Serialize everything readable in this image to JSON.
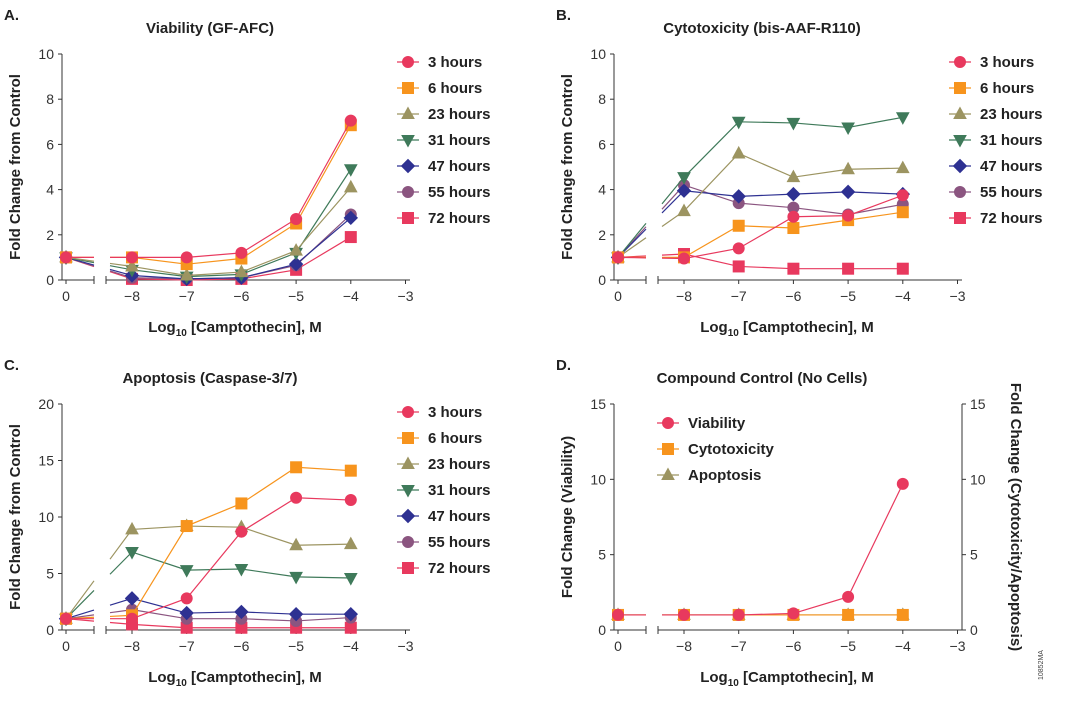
{
  "series_styles": [
    {
      "name": "3 hours",
      "color": "#e8395e",
      "marker": "circle"
    },
    {
      "name": "6 hours",
      "color": "#f7941d",
      "marker": "square"
    },
    {
      "name": "23 hours",
      "color": "#9c9461",
      "marker": "triangle"
    },
    {
      "name": "31 hours",
      "color": "#3f7a5a",
      "marker": "triangle-down"
    },
    {
      "name": "47 hours",
      "color": "#2e3192",
      "marker": "diamond"
    },
    {
      "name": "55 hours",
      "color": "#8b5580",
      "marker": "circle"
    },
    {
      "name": "72 hours",
      "color": "#e8395e",
      "marker": "square"
    }
  ],
  "figure_code": "10852MA",
  "chart_data": [
    {
      "panel": "A.",
      "type": "line",
      "title": "Viability (GF-AFC)",
      "xlabel": "Log10 [Camptothecin], M",
      "xlabel_main": "Log",
      "xlabel_sub": "10",
      "xlabel_rest": " [Camptothecin], M",
      "ylabel": "Fold Change from Control",
      "ylim": [
        0,
        10
      ],
      "yticks": [
        0,
        2,
        4,
        6,
        8,
        10
      ],
      "xticks": [
        "0",
        "−8",
        "−7",
        "−6",
        "−5",
        "−4",
        "−3"
      ],
      "x": [
        0,
        -8,
        -7,
        -6,
        -5,
        -4
      ],
      "axis_break": true,
      "series": [
        {
          "name": "3 hours",
          "values": [
            1,
            1.0,
            1.0,
            1.2,
            2.7,
            7.05
          ]
        },
        {
          "name": "6 hours",
          "values": [
            1,
            1.0,
            0.7,
            0.95,
            2.5,
            6.85
          ]
        },
        {
          "name": "23 hours",
          "values": [
            1,
            0.6,
            0.2,
            0.35,
            1.3,
            4.1
          ]
        },
        {
          "name": "31 hours",
          "values": [
            1,
            0.45,
            0.15,
            0.25,
            1.2,
            4.9
          ]
        },
        {
          "name": "47 hours",
          "values": [
            1,
            0.2,
            0.05,
            0.1,
            0.7,
            2.75
          ]
        },
        {
          "name": "55 hours",
          "values": [
            1,
            0.1,
            0.05,
            0.1,
            0.65,
            2.9
          ]
        },
        {
          "name": "72 hours",
          "values": [
            1,
            0.05,
            0.0,
            0.05,
            0.45,
            1.9
          ]
        }
      ]
    },
    {
      "panel": "B.",
      "type": "line",
      "title": "Cytotoxicity (bis-AAF-R110)",
      "xlabel": "Log10 [Camptothecin], M",
      "xlabel_main": "Log",
      "xlabel_sub": "10",
      "xlabel_rest": " [Camptothecin], M",
      "ylabel": "Fold Change from Control",
      "ylim": [
        0,
        10
      ],
      "yticks": [
        0,
        2,
        4,
        6,
        8,
        10
      ],
      "xticks": [
        "0",
        "−8",
        "−7",
        "−6",
        "−5",
        "−4",
        "−3"
      ],
      "x": [
        0,
        -8,
        -7,
        -6,
        -5,
        -4
      ],
      "axis_break": true,
      "series": [
        {
          "name": "3 hours",
          "values": [
            1,
            0.95,
            1.4,
            2.8,
            2.85,
            3.75
          ]
        },
        {
          "name": "6 hours",
          "values": [
            1,
            1.0,
            2.4,
            2.3,
            2.65,
            3.0
          ]
        },
        {
          "name": "23 hours",
          "values": [
            1,
            3.05,
            5.6,
            4.55,
            4.9,
            4.95
          ]
        },
        {
          "name": "31 hours",
          "values": [
            1,
            4.55,
            7.0,
            6.95,
            6.75,
            7.2
          ]
        },
        {
          "name": "47 hours",
          "values": [
            1,
            3.95,
            3.7,
            3.8,
            3.9,
            3.8
          ]
        },
        {
          "name": "55 hours",
          "values": [
            1,
            4.2,
            3.4,
            3.2,
            2.9,
            3.35
          ]
        },
        {
          "name": "72 hours",
          "values": [
            1,
            1.15,
            0.6,
            0.5,
            0.5,
            0.5
          ]
        }
      ]
    },
    {
      "panel": "C.",
      "type": "line",
      "title": "Apoptosis (Caspase-3/7)",
      "xlabel": "Log10 [Camptothecin], M",
      "xlabel_main": "Log",
      "xlabel_sub": "10",
      "xlabel_rest": " [Camptothecin], M",
      "ylabel": "Fold Change from Control",
      "ylim": [
        0,
        20
      ],
      "yticks": [
        0,
        5,
        10,
        15,
        20
      ],
      "xticks": [
        "0",
        "−8",
        "−7",
        "−6",
        "−5",
        "−4",
        "−3"
      ],
      "x": [
        0,
        -8,
        -7,
        -6,
        -5,
        -4
      ],
      "axis_break": true,
      "series": [
        {
          "name": "3 hours",
          "values": [
            1,
            1.0,
            2.8,
            8.7,
            11.7,
            11.5
          ]
        },
        {
          "name": "6 hours",
          "values": [
            1,
            1.3,
            9.2,
            11.2,
            14.4,
            14.1
          ]
        },
        {
          "name": "23 hours",
          "values": [
            1,
            8.9,
            9.2,
            9.1,
            7.5,
            7.6
          ]
        },
        {
          "name": "31 hours",
          "values": [
            1,
            6.9,
            5.3,
            5.4,
            4.7,
            4.6
          ]
        },
        {
          "name": "47 hours",
          "values": [
            1,
            2.8,
            1.5,
            1.6,
            1.4,
            1.4
          ]
        },
        {
          "name": "55 hours",
          "values": [
            1,
            1.8,
            1.0,
            1.0,
            0.8,
            1.1
          ]
        },
        {
          "name": "72 hours",
          "values": [
            1,
            0.5,
            0.2,
            0.2,
            0.2,
            0.2
          ]
        }
      ]
    },
    {
      "panel": "D.",
      "type": "line",
      "title": "Compound Control (No Cells)",
      "xlabel": "Log10 [Camptothecin], M",
      "xlabel_main": "Log",
      "xlabel_sub": "10",
      "xlabel_rest": " [Camptothecin], M",
      "ylabel": "Fold Change (Viability)",
      "ylabel_right": "Fold Change (Cytotoxicity/Apoptosis)",
      "ylim": [
        0,
        15
      ],
      "yticks": [
        0,
        5,
        10,
        15
      ],
      "ylim_right": [
        0,
        15
      ],
      "yticks_right": [
        0,
        5,
        10,
        15
      ],
      "xticks": [
        "0",
        "−8",
        "−7",
        "−6",
        "−5",
        "−4",
        "−3"
      ],
      "x": [
        0,
        -8,
        -7,
        -6,
        -5,
        -4
      ],
      "axis_break": true,
      "series": [
        {
          "name": "Viability",
          "color": "#e8395e",
          "marker": "circle",
          "values": [
            1,
            1,
            1,
            1.1,
            2.2,
            9.7
          ]
        },
        {
          "name": "Cytotoxicity",
          "color": "#f7941d",
          "marker": "square",
          "values": [
            1,
            1,
            1,
            1,
            1,
            1
          ]
        },
        {
          "name": "Apoptosis",
          "color": "#9c9461",
          "marker": "triangle",
          "values": [
            1,
            1,
            1,
            1,
            1,
            1
          ]
        }
      ]
    }
  ]
}
